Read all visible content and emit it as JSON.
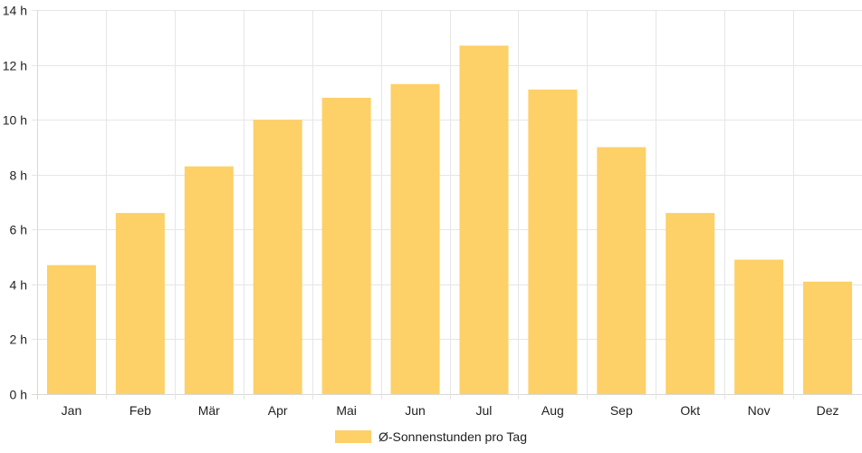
{
  "chart_data": {
    "type": "bar",
    "categories": [
      "Jan",
      "Feb",
      "Mär",
      "Apr",
      "Mai",
      "Jun",
      "Jul",
      "Aug",
      "Sep",
      "Okt",
      "Nov",
      "Dez"
    ],
    "series": [
      {
        "name": "Ø-Sonnenstunden pro Tag",
        "values": [
          4.7,
          6.6,
          8.3,
          10.0,
          10.8,
          11.3,
          12.7,
          11.1,
          9.0,
          6.6,
          4.9,
          4.1
        ],
        "color": "#fdd068"
      }
    ],
    "y_ticks": [
      "0 h",
      "2 h",
      "4 h",
      "6 h",
      "8 h",
      "10 h",
      "12 h",
      "14 h"
    ],
    "ylim": [
      0,
      14
    ],
    "grid": true,
    "legend_position": "bottom"
  }
}
